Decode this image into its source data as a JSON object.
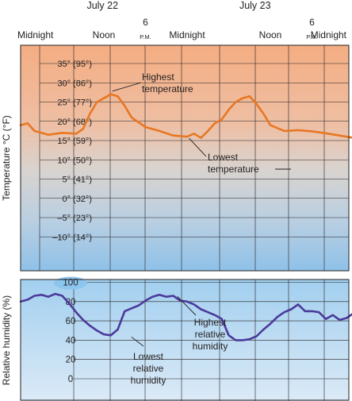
{
  "chart_data": [
    {
      "type": "line",
      "panel": "temperature",
      "ylabel": "Temperature °C (°F)",
      "date_labels": [
        "July 22",
        "July 23"
      ],
      "time_labels": [
        {
          "text": "Midnight",
          "day": "July 22"
        },
        {
          "text": "Noon",
          "day": "July 22"
        },
        {
          "text": "6",
          "sub": "P.M.",
          "day": "July 22"
        },
        {
          "text": "Midnight",
          "day": "July 23"
        },
        {
          "text": "Noon",
          "day": "July 23"
        },
        {
          "text": "6",
          "sub": "P.M.",
          "day": "July 23"
        },
        {
          "text": "Midnight",
          "day": "July 24"
        }
      ],
      "ytick_labels": [
        "35° (95°)",
        "30° (86°)",
        "25° (77°)",
        "20° (68°)",
        "15° (59°)",
        "10° (50°)",
        "5° (41°)",
        "0° (32°)",
        "–5° (23°)",
        "–10° (14°)"
      ],
      "ylim": [
        -12,
        38
      ],
      "x_unit": "hours after midnight, July 22",
      "series": [
        {
          "color": "#e87722",
          "x": [
            0,
            1,
            2,
            3,
            4,
            6,
            8,
            9,
            10,
            11,
            12,
            13,
            14,
            15,
            16,
            18,
            20,
            22,
            24,
            25,
            26,
            27,
            28,
            29,
            30,
            31,
            32,
            33,
            34,
            35,
            36,
            38,
            40,
            42,
            44,
            46,
            48
          ],
          "y": [
            19,
            19.5,
            17.5,
            17,
            16.5,
            17,
            16.8,
            18,
            22,
            25,
            26,
            27,
            26.5,
            24,
            21,
            18.5,
            17.5,
            16.3,
            16,
            16.8,
            15.7,
            17.5,
            19.5,
            20.5,
            23,
            25,
            26,
            26.5,
            24.5,
            22,
            19,
            17.5,
            17.7,
            17.4,
            16.9,
            16.3,
            15.7
          ]
        }
      ],
      "annotations": [
        {
          "text": [
            "Highest",
            "temperature"
          ],
          "x": 13,
          "y": 27
        },
        {
          "text": [
            "Lowest",
            "temperature"
          ],
          "x": 24.3,
          "y": 16
        }
      ],
      "grid": true
    },
    {
      "type": "line",
      "panel": "humidity",
      "ylabel": "Relative humidity (%)",
      "ytick_labels": [
        "100",
        "80",
        "60",
        "40",
        "20",
        "0"
      ],
      "ylim": [
        -8,
        104
      ],
      "x_unit": "hours after midnight, July 22",
      "series": [
        {
          "color": "#4b3a9b",
          "x": [
            0,
            1,
            2,
            3,
            4,
            5,
            6,
            7,
            8,
            9,
            10,
            11,
            12,
            13,
            14,
            15,
            16,
            17,
            18,
            19,
            20,
            21,
            22,
            23,
            24,
            25,
            26,
            27,
            28,
            29,
            30,
            31,
            32,
            33,
            34,
            35,
            36,
            37,
            38,
            39,
            40,
            41,
            42,
            43,
            44,
            45,
            46,
            47,
            48
          ],
          "y": [
            80,
            82,
            86,
            87,
            85,
            88,
            86,
            78,
            69,
            61,
            55,
            50,
            46,
            45,
            51,
            70,
            73,
            76,
            81,
            85,
            87,
            85,
            86,
            81,
            80,
            77,
            72,
            69,
            66,
            62,
            45,
            40,
            40,
            41,
            44,
            51,
            57,
            64,
            69,
            72,
            77,
            70,
            70,
            69,
            62,
            66,
            61,
            63,
            68
          ]
        }
      ],
      "annotations": [
        {
          "text": [
            "Highest",
            "relative",
            "humidity"
          ],
          "x": 22.6,
          "y": 87
        },
        {
          "text": [
            "Lowest",
            "relative",
            "humidity"
          ],
          "x": 16.2,
          "y": 45
        }
      ],
      "grid": true
    }
  ],
  "colors": {
    "temp_line": "#e87722",
    "humidity_line": "#4b3a9b",
    "panel_top_warm": "#f4ad82",
    "panel_mid_gray": "#d9d3cf",
    "panel_bottom_blue": "#8fc1e8",
    "grid": "#231f20"
  }
}
